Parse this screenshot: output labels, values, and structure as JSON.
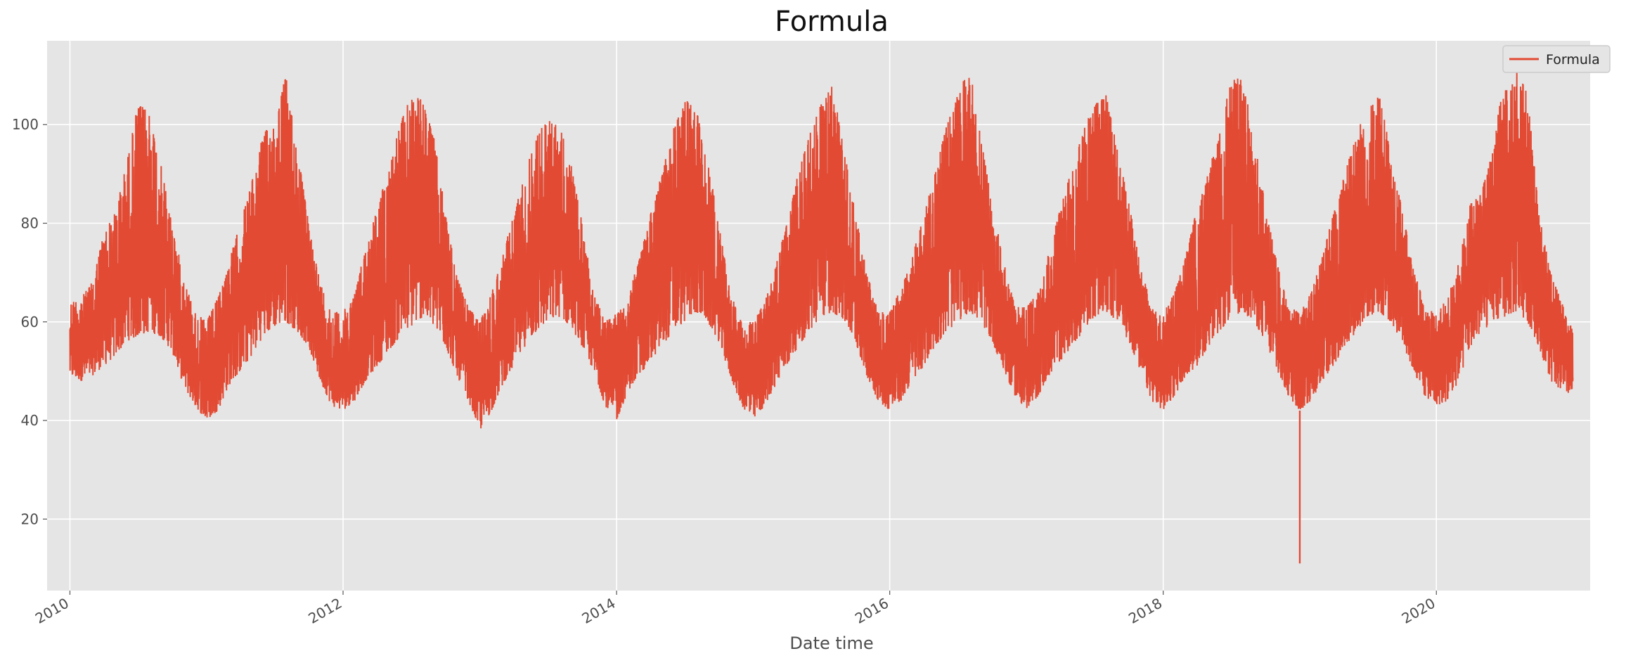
{
  "chart_data": {
    "type": "line",
    "title": "Formula",
    "xlabel": "Date time",
    "ylabel": "",
    "x_tick_labels": [
      "2010",
      "2012",
      "2014",
      "2016",
      "2018",
      "2020"
    ],
    "y_tick_labels": [
      "20",
      "40",
      "60",
      "80",
      "100"
    ],
    "x_range": [
      "2009-11-01",
      "2021-02-15"
    ],
    "ylim": [
      5.5,
      117
    ],
    "grid": true,
    "legend": "top-right",
    "series": [
      {
        "name": "Formula",
        "color": "#E24A33",
        "description": "Hourly readings with strong annual seasonality: peaks ~100-113 each summer, troughs ~36-45 each winter; isolated drop to ~11 near 2019-01",
        "x": [
          "2010-01-01",
          "2010-02-01",
          "2010-03-01",
          "2010-04-01",
          "2010-05-01",
          "2010-06-01",
          "2010-07-01",
          "2010-08-01",
          "2010-09-01",
          "2010-10-01",
          "2010-11-01",
          "2010-12-01",
          "2011-01-01",
          "2011-02-01",
          "2011-03-01",
          "2011-04-01",
          "2011-05-01",
          "2011-06-01",
          "2011-07-01",
          "2011-08-01",
          "2011-09-01",
          "2011-10-01",
          "2011-11-01",
          "2011-12-01",
          "2012-01-01",
          "2012-02-01",
          "2012-03-01",
          "2012-04-01",
          "2012-05-01",
          "2012-06-01",
          "2012-07-01",
          "2012-08-01",
          "2012-09-01",
          "2012-10-01",
          "2012-11-01",
          "2012-12-01",
          "2013-01-01",
          "2013-02-01",
          "2013-03-01",
          "2013-04-01",
          "2013-05-01",
          "2013-06-01",
          "2013-07-01",
          "2013-08-01",
          "2013-09-01",
          "2013-10-01",
          "2013-11-01",
          "2013-12-01",
          "2014-01-01",
          "2014-02-01",
          "2014-03-01",
          "2014-04-01",
          "2014-05-01",
          "2014-06-01",
          "2014-07-01",
          "2014-08-01",
          "2014-09-01",
          "2014-10-01",
          "2014-11-01",
          "2014-12-01",
          "2015-01-01",
          "2015-02-01",
          "2015-03-01",
          "2015-04-01",
          "2015-05-01",
          "2015-06-01",
          "2015-07-01",
          "2015-08-01",
          "2015-09-01",
          "2015-10-01",
          "2015-11-01",
          "2015-12-01",
          "2016-01-01",
          "2016-02-01",
          "2016-03-01",
          "2016-04-01",
          "2016-05-01",
          "2016-06-01",
          "2016-07-01",
          "2016-08-01",
          "2016-09-01",
          "2016-10-01",
          "2016-11-01",
          "2016-12-01",
          "2017-01-01",
          "2017-02-01",
          "2017-03-01",
          "2017-04-01",
          "2017-05-01",
          "2017-06-01",
          "2017-07-01",
          "2017-08-01",
          "2017-09-01",
          "2017-10-01",
          "2017-11-01",
          "2017-12-01",
          "2018-01-01",
          "2018-02-01",
          "2018-03-01",
          "2018-04-01",
          "2018-05-01",
          "2018-06-01",
          "2018-07-01",
          "2018-08-01",
          "2018-09-01",
          "2018-10-01",
          "2018-11-01",
          "2018-12-01",
          "2019-01-01",
          "2019-02-01",
          "2019-03-01",
          "2019-04-01",
          "2019-05-01",
          "2019-06-01",
          "2019-07-01",
          "2019-08-01",
          "2019-09-01",
          "2019-10-01",
          "2019-11-01",
          "2019-12-01",
          "2020-01-01",
          "2020-02-01",
          "2020-03-01",
          "2020-04-01",
          "2020-05-01",
          "2020-06-01",
          "2020-07-01",
          "2020-08-01",
          "2020-09-01",
          "2020-10-01",
          "2020-11-01",
          "2020-12-01",
          "2021-01-01"
        ],
        "y_low": [
          49,
          48,
          49,
          51,
          53,
          56,
          57,
          58,
          57,
          54,
          47,
          43,
          40,
          42,
          47,
          50,
          53,
          57,
          59,
          60,
          58,
          55,
          48,
          43,
          42,
          44,
          48,
          51,
          54,
          57,
          59,
          61,
          59,
          55,
          49,
          44,
          38,
          42,
          47,
          51,
          55,
          58,
          60,
          61,
          59,
          55,
          50,
          43,
          40,
          46,
          49,
          52,
          55,
          58,
          60,
          62,
          60,
          56,
          49,
          43,
          40,
          43,
          47,
          51,
          55,
          58,
          61,
          62,
          60,
          56,
          49,
          44,
          42,
          44,
          48,
          51,
          55,
          58,
          60,
          62,
          60,
          56,
          50,
          45,
          42,
          45,
          49,
          52,
          55,
          58,
          61,
          62,
          60,
          56,
          50,
          44,
          42,
          45,
          49,
          51,
          55,
          58,
          61,
          62,
          60,
          56,
          50,
          45,
          42,
          44,
          48,
          51,
          55,
          58,
          61,
          62,
          60,
          56,
          50,
          45,
          43,
          44,
          48,
          55,
          58,
          60,
          61,
          62,
          60,
          55,
          48,
          46,
          45
        ],
        "y_high": [
          64,
          65,
          68,
          78,
          82,
          92,
          104,
          103,
          92,
          80,
          69,
          62,
          60,
          65,
          72,
          80,
          88,
          98,
          101,
          110,
          95,
          80,
          68,
          62,
          62,
          66,
          75,
          83,
          91,
          100,
          106,
          105,
          97,
          82,
          69,
          63,
          60,
          66,
          73,
          82,
          90,
          98,
          101,
          100,
          92,
          80,
          66,
          60,
          62,
          66,
          72,
          82,
          90,
          99,
          105,
          104,
          93,
          80,
          66,
          60,
          60,
          64,
          71,
          80,
          90,
          98,
          104,
          108,
          95,
          82,
          70,
          62,
          62,
          67,
          73,
          82,
          90,
          100,
          106,
          112,
          97,
          84,
          72,
          63,
          63,
          66,
          74,
          83,
          91,
          99,
          104,
          106,
          95,
          84,
          72,
          63,
          62,
          66,
          73,
          83,
          90,
          99,
          109,
          110,
          97,
          84,
          72,
          63,
          62,
          66,
          73,
          82,
          90,
          98,
          104,
          106,
          95,
          83,
          71,
          63,
          62,
          65,
          72,
          84,
          86,
          97,
          109,
          113,
          106,
          82,
          70,
          64,
          58
        ],
        "spikes": [
          {
            "x": "2019-01-01",
            "y": 11
          }
        ]
      }
    ]
  }
}
